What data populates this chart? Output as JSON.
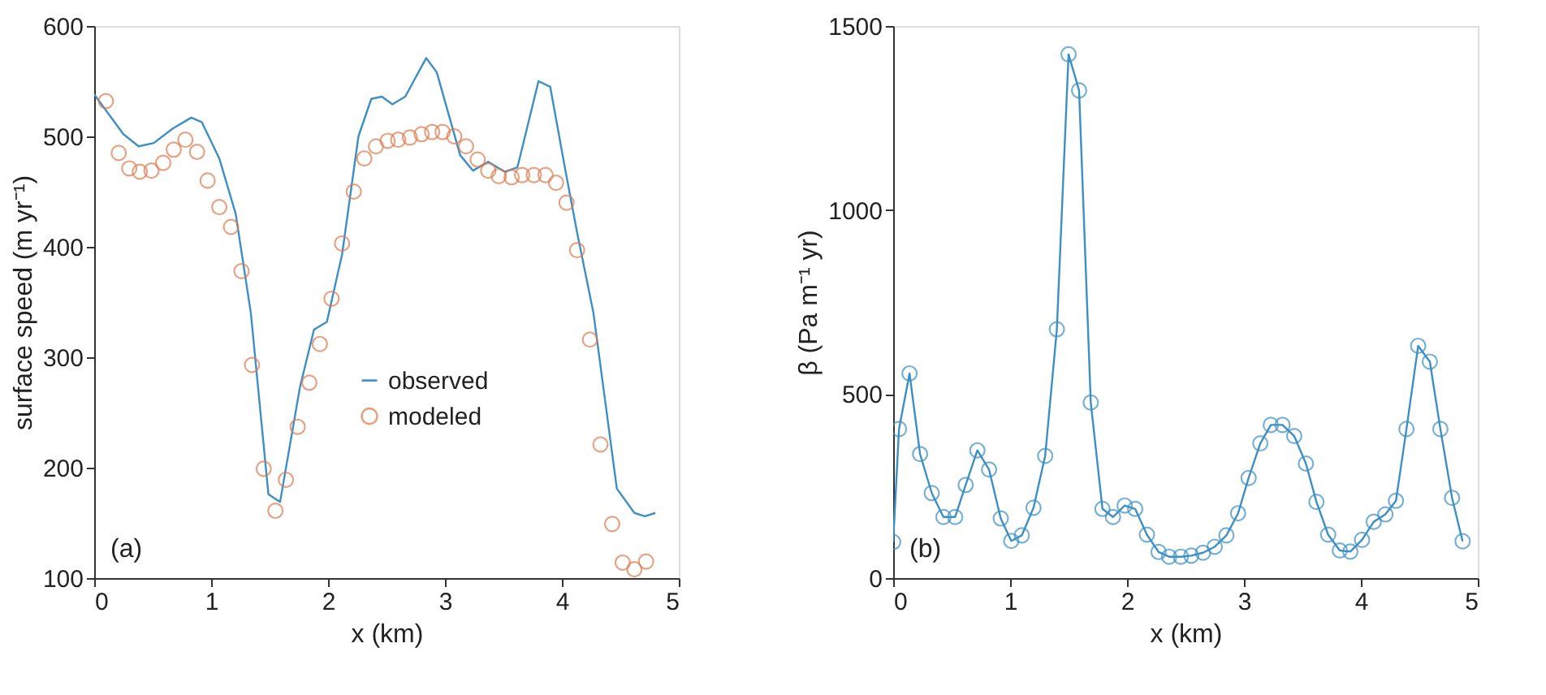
{
  "chart_data": [
    {
      "type": "line",
      "xlabel": "x (km)",
      "ylabel": "surface speed (m yr⁻¹)",
      "xlim": [
        0,
        5
      ],
      "xticks": [
        0,
        1,
        2,
        3,
        4,
        5
      ],
      "ylim": [
        100,
        600
      ],
      "yticks": [
        100,
        200,
        300,
        400,
        500,
        600
      ],
      "grid": false,
      "legend": "bottom",
      "annotations": [
        "(a)"
      ],
      "series": [
        {
          "name": "observed",
          "marker": "none",
          "color": "#3d8fc4",
          "x": [
            0,
            0.25,
            0.38,
            0.51,
            0.67,
            0.83,
            0.92,
            1.07,
            1.21,
            1.34,
            1.49,
            1.59,
            1.76,
            1.88,
            1.99,
            2.12,
            2.26,
            2.37,
            2.46,
            2.55,
            2.66,
            2.84,
            2.93,
            3.13,
            3.24,
            3.37,
            3.51,
            3.62,
            3.8,
            3.9,
            4.02,
            4.13,
            4.27,
            4.47,
            4.62,
            4.71,
            4.8
          ],
          "values": [
            538,
            502,
            491,
            494,
            507,
            517,
            513,
            480,
            430,
            340,
            176,
            169,
            273,
            325,
            332,
            393,
            500,
            534,
            536,
            529,
            536,
            571,
            558,
            483,
            469,
            477,
            468,
            472,
            550,
            545,
            475,
            413,
            340,
            181,
            159,
            156,
            159
          ]
        },
        {
          "name": "modeled",
          "type": "scatter",
          "marker": "circle",
          "color": "#dd7b4f",
          "x": [
            0.1,
            0.21,
            0.3,
            0.39,
            0.49,
            0.59,
            0.68,
            0.78,
            0.88,
            0.97,
            1.07,
            1.17,
            1.26,
            1.35,
            1.45,
            1.55,
            1.64,
            1.74,
            1.84,
            1.93,
            2.03,
            2.12,
            2.22,
            2.31,
            2.41,
            2.51,
            2.6,
            2.7,
            2.8,
            2.89,
            2.98,
            3.08,
            3.18,
            3.28,
            3.37,
            3.46,
            3.57,
            3.66,
            3.76,
            3.86,
            3.95,
            4.04,
            4.13,
            4.24,
            4.33,
            4.43,
            4.52,
            4.62,
            4.72
          ],
          "values": [
            532,
            485,
            471,
            468,
            469,
            476,
            488,
            497,
            486,
            460,
            436,
            418,
            378,
            293,
            199,
            161,
            189,
            237,
            277,
            312,
            353,
            403,
            450,
            480,
            491,
            496,
            497,
            499,
            502,
            504,
            504,
            500,
            491,
            479,
            469,
            464,
            463,
            465,
            465,
            465,
            458,
            440,
            397,
            316,
            221,
            149,
            114,
            108,
            115
          ]
        }
      ]
    },
    {
      "type": "line",
      "xlabel": "x (km)",
      "ylabel": "β (Pa m⁻¹ yr)",
      "xlim": [
        0,
        5
      ],
      "xticks": [
        0,
        1,
        2,
        3,
        4,
        5
      ],
      "ylim": [
        0,
        1500
      ],
      "yticks": [
        0,
        500,
        1000,
        1500
      ],
      "grid": false,
      "annotations": [
        "(b)"
      ],
      "series": [
        {
          "marker": "circle",
          "color": "#3d8fc4",
          "x": [
            0.0,
            0.05,
            0.14,
            0.23,
            0.33,
            0.43,
            0.53,
            0.62,
            0.72,
            0.82,
            0.92,
            1.01,
            1.1,
            1.2,
            1.3,
            1.4,
            1.5,
            1.59,
            1.69,
            1.79,
            1.88,
            1.98,
            2.07,
            2.17,
            2.27,
            2.36,
            2.46,
            2.55,
            2.65,
            2.75,
            2.85,
            2.95,
            3.04,
            3.14,
            3.23,
            3.33,
            3.43,
            3.53,
            3.62,
            3.72,
            3.82,
            3.91,
            4.01,
            4.11,
            4.21,
            4.3,
            4.39,
            4.49,
            4.59,
            4.68,
            4.78,
            4.87
          ],
          "values": [
            98,
            405,
            556,
            337,
            231,
            166,
            166,
            253,
            347,
            295,
            162,
            101,
            116,
            191,
            332,
            676,
            1423,
            1325,
            477,
            188,
            166,
            197,
            188,
            118,
            71,
            58,
            58,
            61,
            69,
            85,
            116,
            176,
            272,
            366,
            416,
            416,
            386,
            311,
            207,
            118,
            75,
            72,
            104,
            153,
            173,
            210,
            405,
            631,
            588,
            405,
            218,
            100
          ]
        }
      ]
    }
  ]
}
